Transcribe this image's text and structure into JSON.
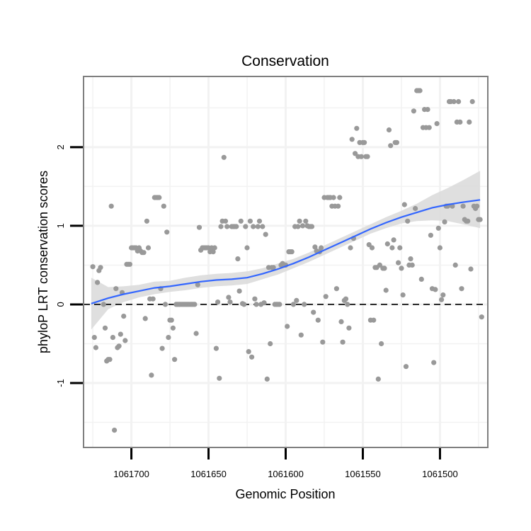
{
  "chart_data": {
    "type": "scatter",
    "title": "Conservation",
    "xlabel": "Genomic Position",
    "ylabel": "phyloP LRT conservation scores",
    "x_reversed": true,
    "xlim": [
      1061731,
      1061469
    ],
    "ylim": [
      -1.82,
      2.9
    ],
    "x_ticks": [
      1061700,
      1061650,
      1061600,
      1061550,
      1061500
    ],
    "x_tick_labels": [
      "1061700",
      "1061650",
      "1061600",
      "1061550",
      "1061500"
    ],
    "y_ticks": [
      -1,
      0,
      1,
      2
    ],
    "y_tick_labels": [
      "-1",
      "0",
      "1",
      "2"
    ],
    "reference_line": {
      "y": 0,
      "style": "dashed"
    },
    "colors": {
      "points": "#999999",
      "smooth_line": "#3366ff",
      "confidence_band": "#dcdcdc",
      "grid": "#f2f2f2",
      "panel_border": "#7f7f7f",
      "reference_line": "#000000"
    },
    "points": [
      [
        1061725,
        0.48
      ],
      [
        1061724,
        -0.42
      ],
      [
        1061723,
        -0.55
      ],
      [
        1061722,
        0.28
      ],
      [
        1061721,
        0.43
      ],
      [
        1061720,
        0.47
      ],
      [
        1061718,
        0.0
      ],
      [
        1061717,
        -0.3
      ],
      [
        1061716,
        -0.72
      ],
      [
        1061715,
        -0.7
      ],
      [
        1061714,
        -0.7
      ],
      [
        1061713,
        1.25
      ],
      [
        1061712,
        -0.42
      ],
      [
        1061711,
        -1.6
      ],
      [
        1061710,
        0.2
      ],
      [
        1061709,
        -0.55
      ],
      [
        1061708,
        -0.53
      ],
      [
        1061707,
        -0.38
      ],
      [
        1061706,
        0.15
      ],
      [
        1061705,
        -0.15
      ],
      [
        1061704,
        -0.46
      ],
      [
        1061703,
        0.51
      ],
      [
        1061702,
        0.51
      ],
      [
        1061701,
        0.51
      ],
      [
        1061700,
        0.72
      ],
      [
        1061699,
        0.72
      ],
      [
        1061698,
        0.72
      ],
      [
        1061697,
        0.72
      ],
      [
        1061696,
        0.68
      ],
      [
        1061695,
        0.72
      ],
      [
        1061694,
        0.68
      ],
      [
        1061693,
        0.66
      ],
      [
        1061692,
        0.66
      ],
      [
        1061691,
        -0.18
      ],
      [
        1061690,
        1.06
      ],
      [
        1061689,
        0.72
      ],
      [
        1061688,
        0.07
      ],
      [
        1061687,
        -0.9
      ],
      [
        1061686,
        0.07
      ],
      [
        1061685,
        1.36
      ],
      [
        1061684,
        1.36
      ],
      [
        1061683,
        1.36
      ],
      [
        1061682,
        1.36
      ],
      [
        1061681,
        0.2
      ],
      [
        1061680,
        -0.56
      ],
      [
        1061679,
        1.25
      ],
      [
        1061678,
        0.0
      ],
      [
        1061677,
        0.92
      ],
      [
        1061676,
        -0.42
      ],
      [
        1061675,
        -0.2
      ],
      [
        1061674,
        -0.2
      ],
      [
        1061673,
        -0.3
      ],
      [
        1061672,
        -0.7
      ],
      [
        1061671,
        0.0
      ],
      [
        1061670,
        0.0
      ],
      [
        1061669,
        0.0
      ],
      [
        1061668,
        0.0
      ],
      [
        1061667,
        0.0
      ],
      [
        1061666,
        0.0
      ],
      [
        1061665,
        0.0
      ],
      [
        1061664,
        0.0
      ],
      [
        1061663,
        0.0
      ],
      [
        1061662,
        0.0
      ],
      [
        1061661,
        0.0
      ],
      [
        1061660,
        0.0
      ],
      [
        1061659,
        0.0
      ],
      [
        1061658,
        -0.37
      ],
      [
        1061657,
        0.25
      ],
      [
        1061656,
        0.98
      ],
      [
        1061655,
        0.69
      ],
      [
        1061654,
        0.72
      ],
      [
        1061653,
        0.72
      ],
      [
        1061652,
        0.72
      ],
      [
        1061651,
        0.72
      ],
      [
        1061650,
        0.72
      ],
      [
        1061649,
        0.67
      ],
      [
        1061648,
        0.72
      ],
      [
        1061647,
        0.67
      ],
      [
        1061646,
        0.72
      ],
      [
        1061645,
        -0.56
      ],
      [
        1061644,
        0.03
      ],
      [
        1061643,
        -0.94
      ],
      [
        1061642,
        0.99
      ],
      [
        1061641,
        1.06
      ],
      [
        1061640,
        1.87
      ],
      [
        1061639,
        1.06
      ],
      [
        1061638,
        0.99
      ],
      [
        1061637,
        0.09
      ],
      [
        1061636,
        0.03
      ],
      [
        1061635,
        0.99
      ],
      [
        1061634,
        0.99
      ],
      [
        1061633,
        0.99
      ],
      [
        1061632,
        0.99
      ],
      [
        1061631,
        0.58
      ],
      [
        1061630,
        0.17
      ],
      [
        1061629,
        1.06
      ],
      [
        1061628,
        0.01
      ],
      [
        1061627,
        0.0
      ],
      [
        1061626,
        0.99
      ],
      [
        1061625,
        0.72
      ],
      [
        1061624,
        -0.6
      ],
      [
        1061623,
        1.06
      ],
      [
        1061622,
        -0.67
      ],
      [
        1061621,
        0.99
      ],
      [
        1061620,
        0.07
      ],
      [
        1061619,
        0.0
      ],
      [
        1061618,
        0.99
      ],
      [
        1061617,
        1.06
      ],
      [
        1061616,
        0.0
      ],
      [
        1061615,
        0.99
      ],
      [
        1061614,
        0.02
      ],
      [
        1061613,
        0.89
      ],
      [
        1061612,
        -0.95
      ],
      [
        1061611,
        0.47
      ],
      [
        1061610,
        -0.5
      ],
      [
        1061609,
        0.47
      ],
      [
        1061608,
        0.47
      ],
      [
        1061607,
        0.0
      ],
      [
        1061606,
        0.0
      ],
      [
        1061605,
        0.0
      ],
      [
        1061604,
        0.0
      ],
      [
        1061603,
        0.5
      ],
      [
        1061602,
        0.52
      ],
      [
        1061601,
        0.5
      ],
      [
        1061600,
        0.5
      ],
      [
        1061599,
        -0.28
      ],
      [
        1061598,
        0.67
      ],
      [
        1061597,
        0.67
      ],
      [
        1061596,
        0.67
      ],
      [
        1061595,
        0.0
      ],
      [
        1061594,
        0.99
      ],
      [
        1061593,
        0.05
      ],
      [
        1061592,
        0.99
      ],
      [
        1061591,
        1.06
      ],
      [
        1061590,
        -0.39
      ],
      [
        1061589,
        1.0
      ],
      [
        1061588,
        0.0
      ],
      [
        1061587,
        1.06
      ],
      [
        1061586,
        1.0
      ],
      [
        1061585,
        0.99
      ],
      [
        1061584,
        0.99
      ],
      [
        1061583,
        0.99
      ],
      [
        1061582,
        -0.1
      ],
      [
        1061581,
        0.73
      ],
      [
        1061580,
        0.68
      ],
      [
        1061579,
        -0.2
      ],
      [
        1061578,
        0.67
      ],
      [
        1061577,
        0.72
      ],
      [
        1061576,
        -0.48
      ],
      [
        1061575,
        1.36
      ],
      [
        1061574,
        0.1
      ],
      [
        1061573,
        1.36
      ],
      [
        1061572,
        1.36
      ],
      [
        1061571,
        1.36
      ],
      [
        1061570,
        1.25
      ],
      [
        1061569,
        1.36
      ],
      [
        1061568,
        1.25
      ],
      [
        1061567,
        0.2
      ],
      [
        1061566,
        1.25
      ],
      [
        1061565,
        1.36
      ],
      [
        1061564,
        -0.22
      ],
      [
        1061563,
        -0.48
      ],
      [
        1061562,
        0.05
      ],
      [
        1061561,
        0.07
      ],
      [
        1061560,
        0.0
      ],
      [
        1061559,
        -0.3
      ],
      [
        1061558,
        0.72
      ],
      [
        1061557,
        2.1
      ],
      [
        1061556,
        0.84
      ],
      [
        1061555,
        1.92
      ],
      [
        1061554,
        2.24
      ],
      [
        1061553,
        1.88
      ],
      [
        1061552,
        2.06
      ],
      [
        1061551,
        1.88
      ],
      [
        1061550,
        2.06
      ],
      [
        1061549,
        2.06
      ],
      [
        1061548,
        1.88
      ],
      [
        1061547,
        1.88
      ],
      [
        1061546,
        0.76
      ],
      [
        1061545,
        -0.2
      ],
      [
        1061544,
        0.72
      ],
      [
        1061543,
        -0.2
      ],
      [
        1061542,
        0.47
      ],
      [
        1061541,
        0.47
      ],
      [
        1061540,
        -0.95
      ],
      [
        1061539,
        0.5
      ],
      [
        1061538,
        -0.5
      ],
      [
        1061537,
        0.46
      ],
      [
        1061536,
        0.46
      ],
      [
        1061535,
        0.18
      ],
      [
        1061534,
        0.77
      ],
      [
        1061533,
        2.22
      ],
      [
        1061532,
        2.02
      ],
      [
        1061531,
        0.72
      ],
      [
        1061530,
        0.82
      ],
      [
        1061529,
        2.06
      ],
      [
        1061528,
        2.06
      ],
      [
        1061527,
        0.53
      ],
      [
        1061526,
        0.72
      ],
      [
        1061525,
        0.46
      ],
      [
        1061524,
        0.12
      ],
      [
        1061523,
        1.27
      ],
      [
        1061522,
        -0.79
      ],
      [
        1061521,
        1.06
      ],
      [
        1061520,
        0.5
      ],
      [
        1061519,
        0.58
      ],
      [
        1061518,
        0.5
      ],
      [
        1061517,
        2.46
      ],
      [
        1061516,
        1.22
      ],
      [
        1061515,
        2.72
      ],
      [
        1061514,
        2.72
      ],
      [
        1061513,
        2.72
      ],
      [
        1061512,
        0.32
      ],
      [
        1061511,
        2.25
      ],
      [
        1061510,
        2.48
      ],
      [
        1061509,
        2.25
      ],
      [
        1061508,
        2.48
      ],
      [
        1061507,
        2.25
      ],
      [
        1061506,
        0.88
      ],
      [
        1061505,
        0.2
      ],
      [
        1061504,
        -0.74
      ],
      [
        1061503,
        0.19
      ],
      [
        1061502,
        2.3
      ],
      [
        1061501,
        0.97
      ],
      [
        1061500,
        0.72
      ],
      [
        1061499,
        0.06
      ],
      [
        1061498,
        0.12
      ],
      [
        1061497,
        1.05
      ],
      [
        1061496,
        1.25
      ],
      [
        1061495,
        1.25
      ],
      [
        1061494,
        2.58
      ],
      [
        1061493,
        2.58
      ],
      [
        1061492,
        1.25
      ],
      [
        1061491,
        2.58
      ],
      [
        1061490,
        0.5
      ],
      [
        1061489,
        2.32
      ],
      [
        1061488,
        2.58
      ],
      [
        1061487,
        2.32
      ],
      [
        1061486,
        0.2
      ],
      [
        1061485,
        1.25
      ],
      [
        1061484,
        1.08
      ],
      [
        1061483,
        1.06
      ],
      [
        1061482,
        1.06
      ],
      [
        1061481,
        2.32
      ],
      [
        1061480,
        0.45
      ],
      [
        1061479,
        2.58
      ],
      [
        1061478,
        1.25
      ],
      [
        1061477,
        1.22
      ],
      [
        1061476,
        1.25
      ],
      [
        1061475,
        1.08
      ],
      [
        1061474,
        1.08
      ],
      [
        1061473,
        -0.16
      ]
    ],
    "smooth": {
      "x": [
        1061726,
        1061715,
        1061705,
        1061695,
        1061685,
        1061675,
        1061665,
        1061655,
        1061645,
        1061635,
        1061625,
        1061615,
        1061605,
        1061595,
        1061585,
        1061575,
        1061565,
        1061555,
        1061545,
        1061535,
        1061525,
        1061515,
        1061505,
        1061495,
        1061485,
        1061474
      ],
      "y": [
        0.01,
        0.08,
        0.13,
        0.17,
        0.21,
        0.23,
        0.26,
        0.29,
        0.31,
        0.32,
        0.34,
        0.39,
        0.45,
        0.52,
        0.6,
        0.69,
        0.78,
        0.87,
        0.96,
        1.04,
        1.11,
        1.17,
        1.23,
        1.27,
        1.3,
        1.33
      ],
      "lower": [
        -0.32,
        -0.06,
        0.03,
        0.09,
        0.13,
        0.16,
        0.18,
        0.21,
        0.23,
        0.24,
        0.26,
        0.32,
        0.38,
        0.46,
        0.54,
        0.63,
        0.72,
        0.81,
        0.9,
        0.97,
        1.03,
        1.06,
        1.07,
        1.06,
        1.02,
        0.97
      ],
      "upper": [
        0.34,
        0.22,
        0.23,
        0.25,
        0.29,
        0.3,
        0.34,
        0.37,
        0.39,
        0.4,
        0.42,
        0.46,
        0.52,
        0.58,
        0.66,
        0.75,
        0.84,
        0.93,
        1.02,
        1.11,
        1.19,
        1.28,
        1.39,
        1.48,
        1.58,
        1.7
      ]
    }
  }
}
